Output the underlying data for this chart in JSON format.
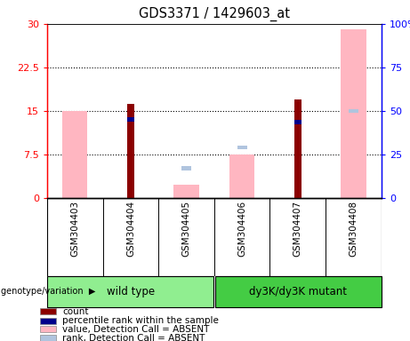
{
  "title": "GDS3371 / 1429603_at",
  "samples": [
    "GSM304403",
    "GSM304404",
    "GSM304405",
    "GSM304406",
    "GSM304407",
    "GSM304408"
  ],
  "count_values": [
    0,
    16.2,
    0,
    0,
    17.0,
    0
  ],
  "percentile_rank_values": [
    0,
    45.0,
    0,
    0,
    43.5,
    0
  ],
  "absent_value_values": [
    15.0,
    0,
    2.2,
    7.5,
    0,
    29.0
  ],
  "absent_rank_values": [
    0,
    0,
    17.0,
    29.0,
    0,
    50.0
  ],
  "yticks_left": [
    0,
    7.5,
    15,
    22.5,
    30
  ],
  "yticks_left_labels": [
    "0",
    "7.5",
    "15",
    "22.5",
    "30"
  ],
  "yticks_right": [
    0,
    25,
    50,
    75,
    100
  ],
  "yticks_right_labels": [
    "0",
    "25",
    "50",
    "75",
    "100%"
  ],
  "color_count": "#8B0000",
  "color_percentile": "#00008B",
  "color_absent_value": "#FFB6C1",
  "color_absent_rank": "#B0C4DE",
  "genotype_label": "genotype/variation",
  "legend_items": [
    {
      "label": "count",
      "color": "#8B0000"
    },
    {
      "label": "percentile rank within the sample",
      "color": "#00008B"
    },
    {
      "label": "value, Detection Call = ABSENT",
      "color": "#FFB6C1"
    },
    {
      "label": "rank, Detection Call = ABSENT",
      "color": "#B0C4DE"
    }
  ],
  "wt_color": "#90ee90",
  "mut_color": "#44cc44",
  "sample_bg": "#c8c8c8"
}
